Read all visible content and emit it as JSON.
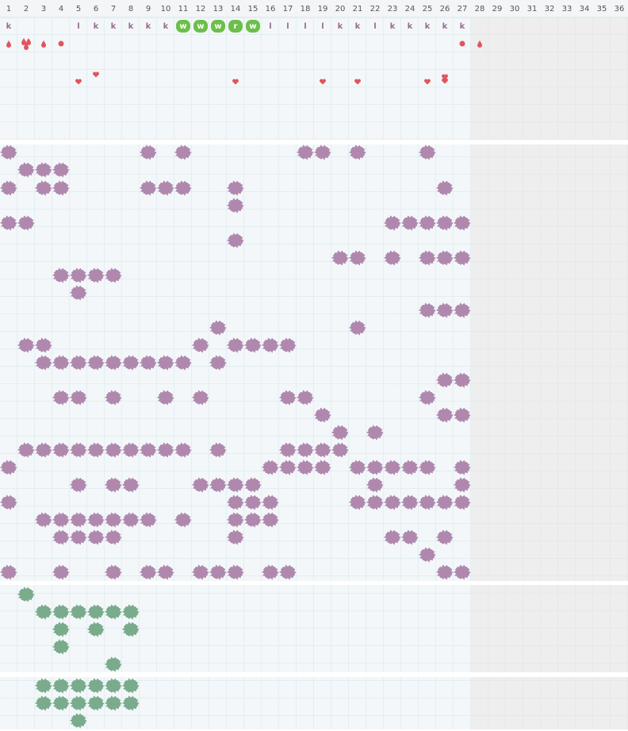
{
  "columns": [
    1,
    2,
    3,
    4,
    5,
    6,
    7,
    8,
    9,
    10,
    11,
    12,
    13,
    14,
    15,
    16,
    17,
    18,
    19,
    20,
    21,
    22,
    23,
    24,
    25,
    26,
    27,
    28,
    29,
    30,
    31,
    32,
    33,
    34,
    35,
    36
  ],
  "letters": [
    "k",
    null,
    null,
    null,
    "l",
    "k",
    "k",
    "k",
    "k",
    "k",
    "w",
    "w",
    "w",
    "r",
    "w",
    "l",
    "l",
    "l",
    "l",
    "k",
    "k",
    "l",
    "k",
    "k",
    "k",
    "k",
    "k"
  ]
}
